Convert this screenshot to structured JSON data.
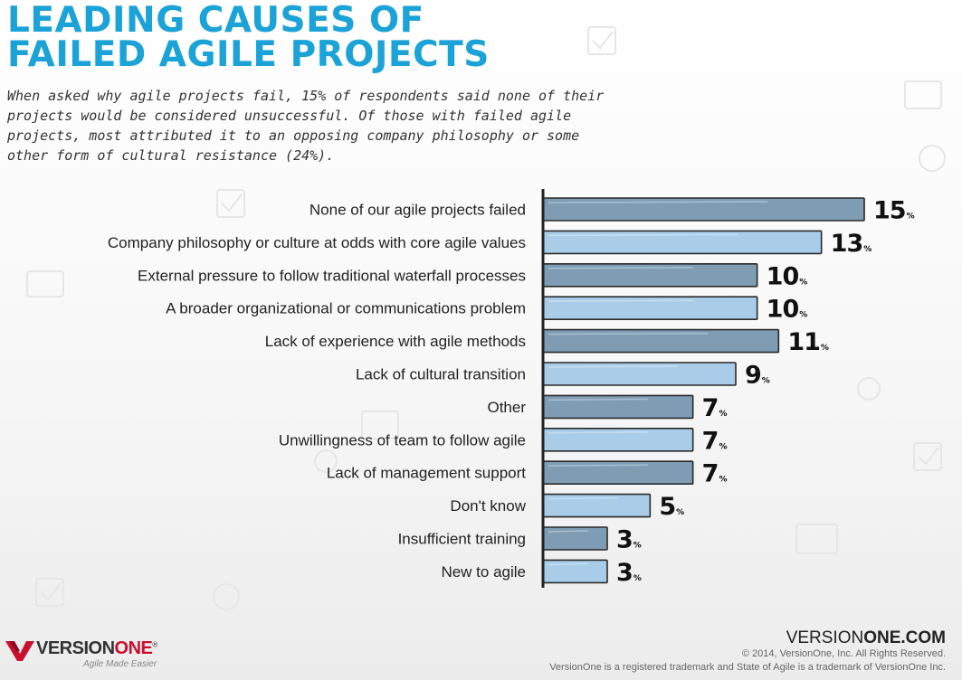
{
  "title_line1": "LEADING CAUSES OF",
  "title_line2": "FAILED AGILE PROJECTS",
  "intro": "When asked why agile projects fail, 15% of respondents said none of their projects would be considered unsuccessful. Of those with failed agile projects, most attributed it to an opposing company philosophy or some other form of cultural resistance (24%).",
  "chart_data": {
    "type": "bar",
    "orientation": "horizontal",
    "categories": [
      "None of our agile projects failed",
      "Company philosophy or culture at odds with core agile values",
      "External pressure to follow traditional waterfall processes",
      "A broader organizational or communications problem",
      "Lack of experience with agile methods",
      "Lack of cultural transition",
      "Other",
      "Unwillingness of team to follow agile",
      "Lack of management support",
      "Don't know",
      "Insufficient training",
      "New to agile"
    ],
    "values": [
      15,
      13,
      10,
      10,
      11,
      9,
      7,
      7,
      7,
      5,
      3,
      3
    ],
    "unit": "%",
    "bar_colors": [
      "#7e9db5",
      "#a9cde8"
    ],
    "title": "",
    "xlabel": "",
    "ylabel": ""
  },
  "footer": {
    "url_part1": "VERSION",
    "url_part2": "ONE.COM",
    "copyright": "© 2014, VersionOne, Inc. All Rights Reserved.",
    "trademark": "VersionOne is a registered trademark and State of Agile is a trademark of VersionOne Inc.",
    "logo_version": "VERSION",
    "logo_one": "ONE",
    "logo_reg": "®",
    "logo_tagline": "Agile Made Easier"
  }
}
